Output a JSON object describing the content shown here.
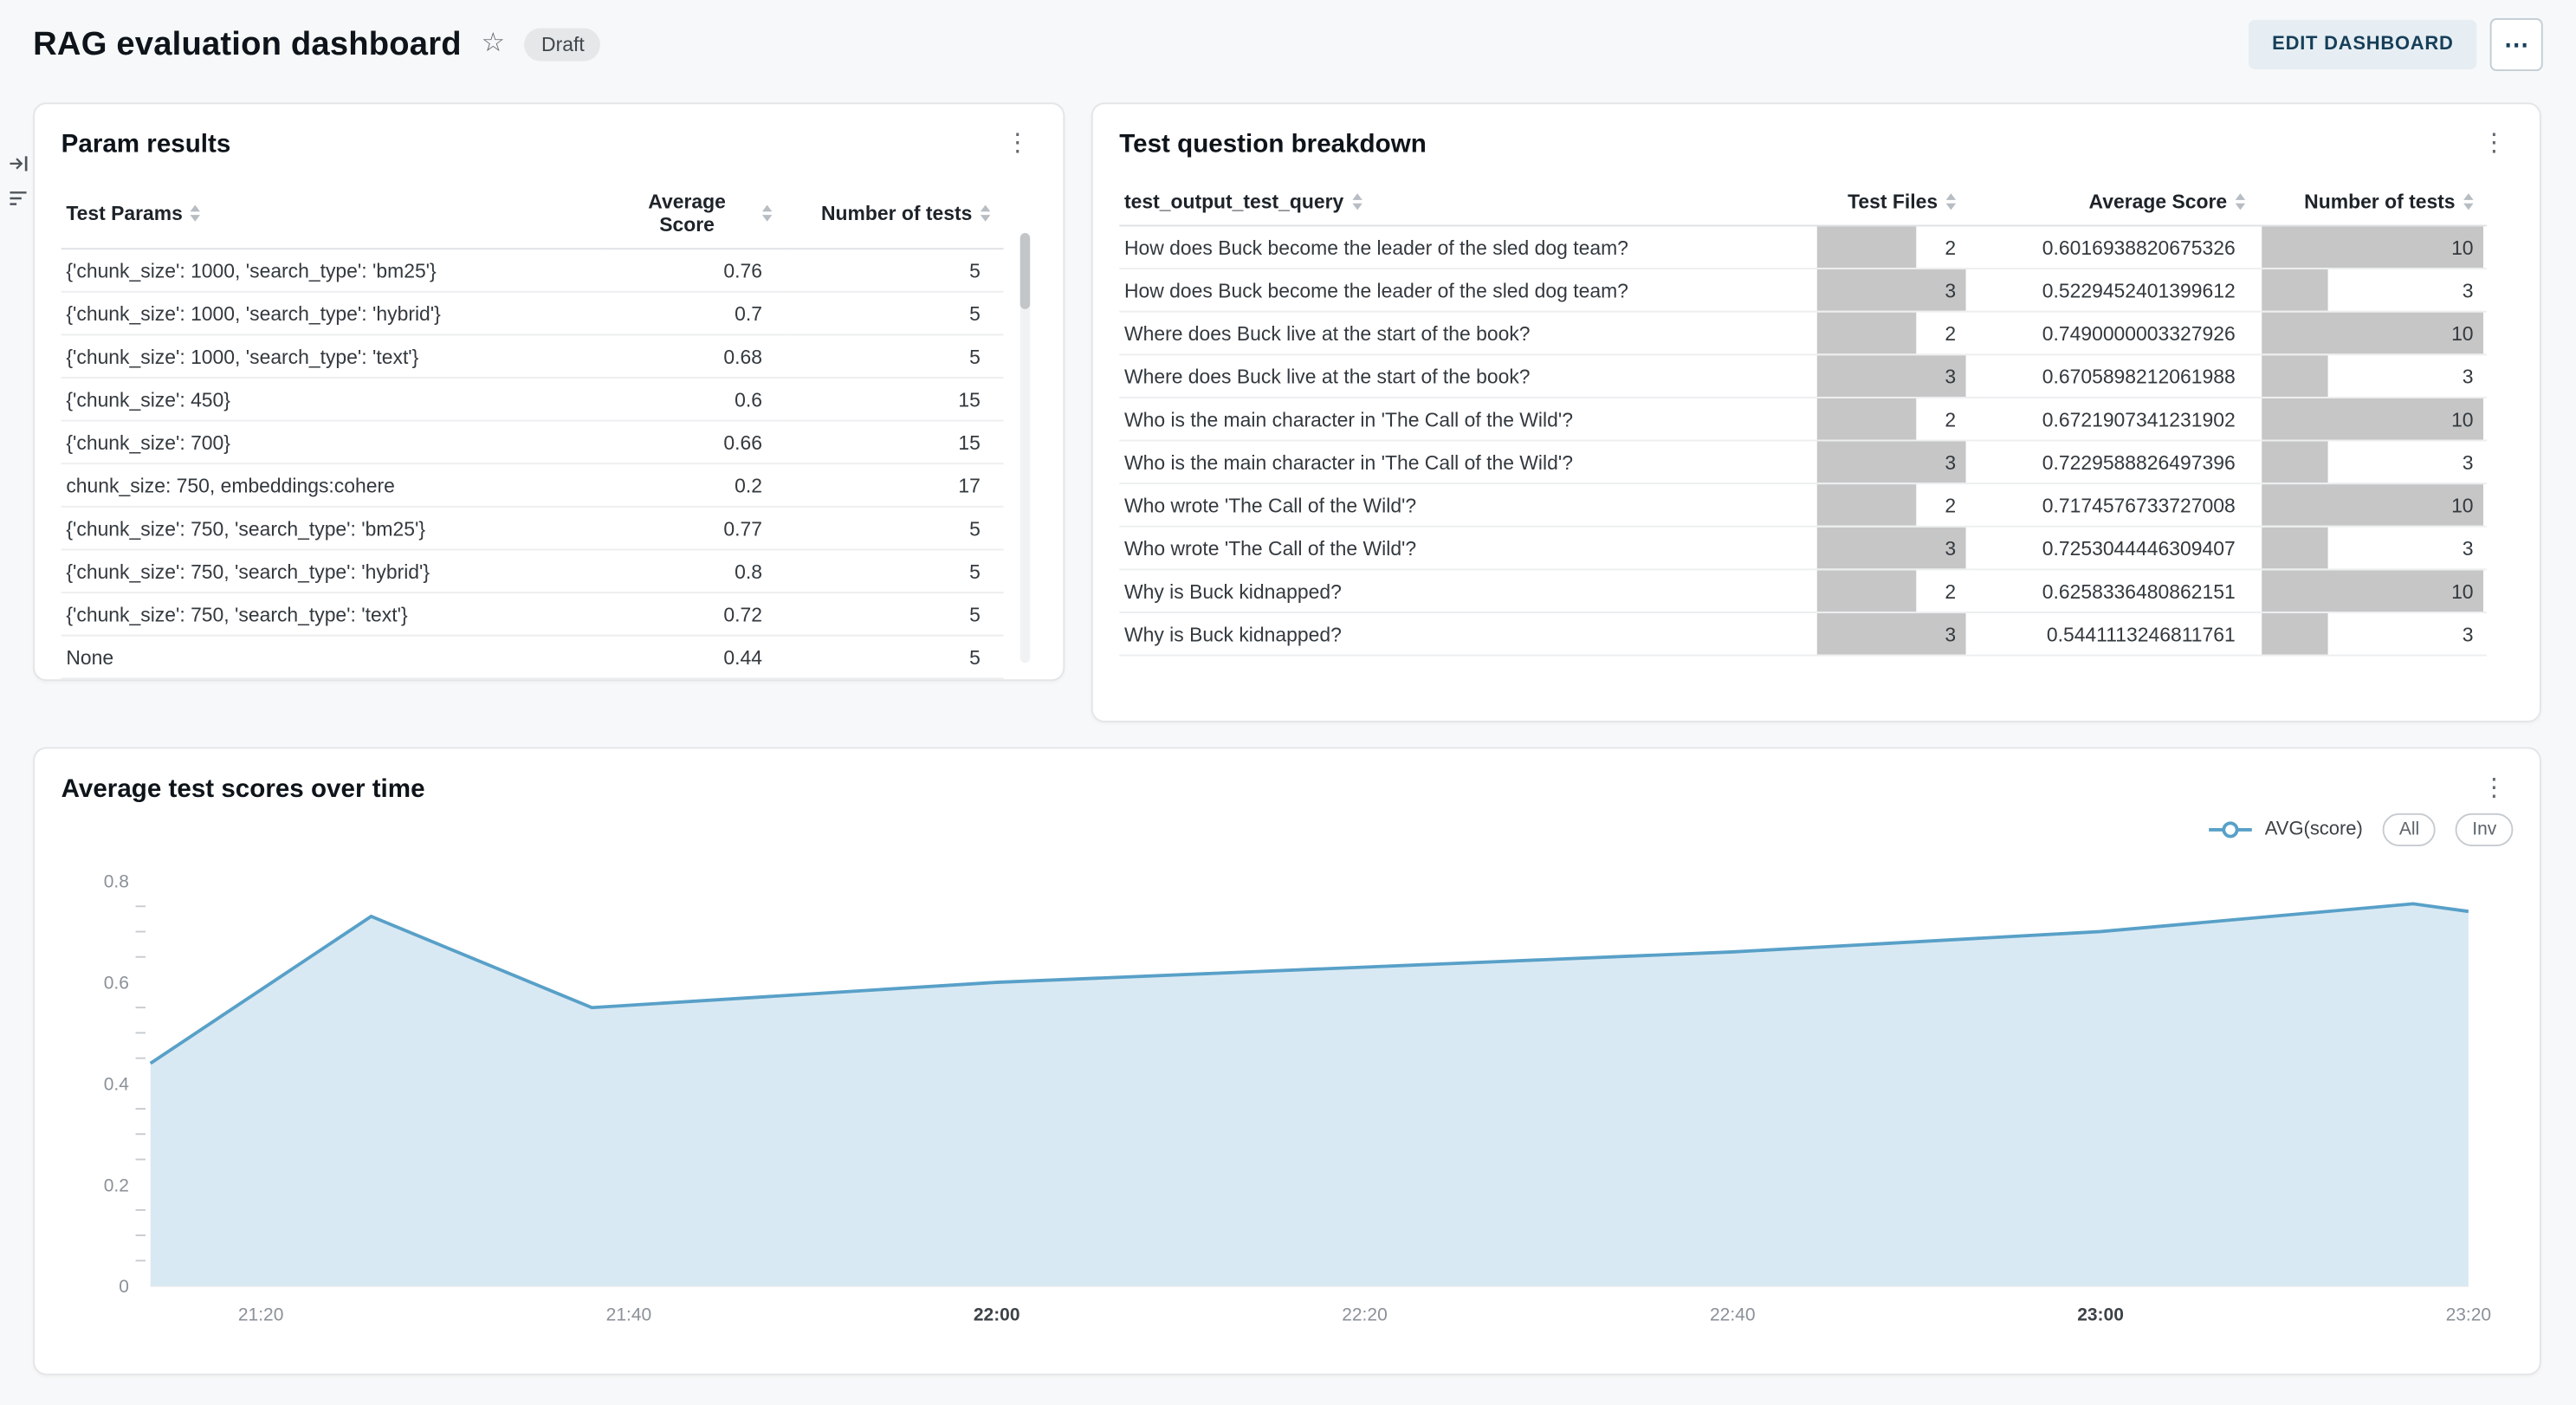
{
  "page": {
    "title": "RAG evaluation dashboard",
    "status_badge": "Draft",
    "edit_button_label": "EDIT DASHBOARD",
    "more_button_icon": "⋯",
    "favorite_icon": "☆",
    "kebab_icon": "⋮"
  },
  "param_results": {
    "title": "Param results",
    "columns": [
      "Test Params",
      "Average Score",
      "Number of tests"
    ],
    "rows": [
      [
        "{'chunk_size': 1000, 'search_type': 'bm25'}",
        "0.76",
        "5"
      ],
      [
        "{'chunk_size': 1000, 'search_type': 'hybrid'}",
        "0.7",
        "5"
      ],
      [
        "{'chunk_size': 1000, 'search_type': 'text'}",
        "0.68",
        "5"
      ],
      [
        "{'chunk_size': 450}",
        "0.6",
        "15"
      ],
      [
        "{'chunk_size': 700}",
        "0.66",
        "15"
      ],
      [
        "chunk_size: 750, embeddings:cohere",
        "0.2",
        "17"
      ],
      [
        "{'chunk_size': 750, 'search_type': 'bm25'}",
        "0.77",
        "5"
      ],
      [
        "{'chunk_size': 750, 'search_type': 'hybrid'}",
        "0.8",
        "5"
      ],
      [
        "{'chunk_size': 750, 'search_type': 'text'}",
        "0.72",
        "5"
      ],
      [
        "None",
        "0.44",
        "5"
      ]
    ]
  },
  "question_breakdown": {
    "title": "Test question breakdown",
    "columns": [
      "test_output_test_query",
      "Test Files",
      "Average Score",
      "Number of tests"
    ],
    "test_files_max": 3,
    "num_tests_max": 10,
    "rows": [
      {
        "query": "How does Buck become the leader of the sled dog team?",
        "test_files": 2,
        "avg_score": "0.6016938820675326",
        "num_tests": 10
      },
      {
        "query": "How does Buck become the leader of the sled dog team?",
        "test_files": 3,
        "avg_score": "0.5229452401399612",
        "num_tests": 3
      },
      {
        "query": "Where does Buck live at the start of the book?",
        "test_files": 2,
        "avg_score": "0.7490000003327926",
        "num_tests": 10
      },
      {
        "query": "Where does Buck live at the start of the book?",
        "test_files": 3,
        "avg_score": "0.6705898212061988",
        "num_tests": 3
      },
      {
        "query": "Who is the main character in 'The Call of the Wild'?",
        "test_files": 2,
        "avg_score": "0.6721907341231902",
        "num_tests": 10
      },
      {
        "query": "Who is the main character in 'The Call of the Wild'?",
        "test_files": 3,
        "avg_score": "0.7229588826497396",
        "num_tests": 3
      },
      {
        "query": "Who wrote 'The Call of the Wild'?",
        "test_files": 2,
        "avg_score": "0.7174576733727008",
        "num_tests": 10
      },
      {
        "query": "Who wrote 'The Call of the Wild'?",
        "test_files": 3,
        "avg_score": "0.7253044446309407",
        "num_tests": 3
      },
      {
        "query": "Why is Buck kidnapped?",
        "test_files": 2,
        "avg_score": "0.6258336480862151",
        "num_tests": 10
      },
      {
        "query": "Why is Buck kidnapped?",
        "test_files": 3,
        "avg_score": "0.5441113246811761",
        "num_tests": 3
      }
    ]
  },
  "chart_panel": {
    "title": "Average test scores over time",
    "legend_label": "AVG(score)",
    "buttons": [
      "All",
      "Inv"
    ]
  },
  "chart_data": {
    "type": "area",
    "title": "Average test scores over time",
    "series_name": "AVG(score)",
    "xlabel": "",
    "ylabel": "",
    "x_range": [
      "21:14",
      "23:20"
    ],
    "ylim": [
      0,
      0.8
    ],
    "yticks": [
      0,
      0.2,
      0.4,
      0.6,
      0.8
    ],
    "xticks": [
      "21:20",
      "21:40",
      "22:00",
      "22:20",
      "22:40",
      "23:00",
      "23:20"
    ],
    "xticks_bold": [
      "22:00",
      "23:00"
    ],
    "points": [
      [
        "21:14",
        0.44
      ],
      [
        "21:26",
        0.73
      ],
      [
        "21:38",
        0.55
      ],
      [
        "22:00",
        0.6
      ],
      [
        "22:20",
        0.63
      ],
      [
        "22:40",
        0.66
      ],
      [
        "23:00",
        0.7
      ],
      [
        "23:17",
        0.755
      ],
      [
        "23:20",
        0.74
      ]
    ],
    "line_color": "#58a0c8",
    "fill_color": "#d9e9f3",
    "legend_position": "top-right",
    "grid": false
  }
}
